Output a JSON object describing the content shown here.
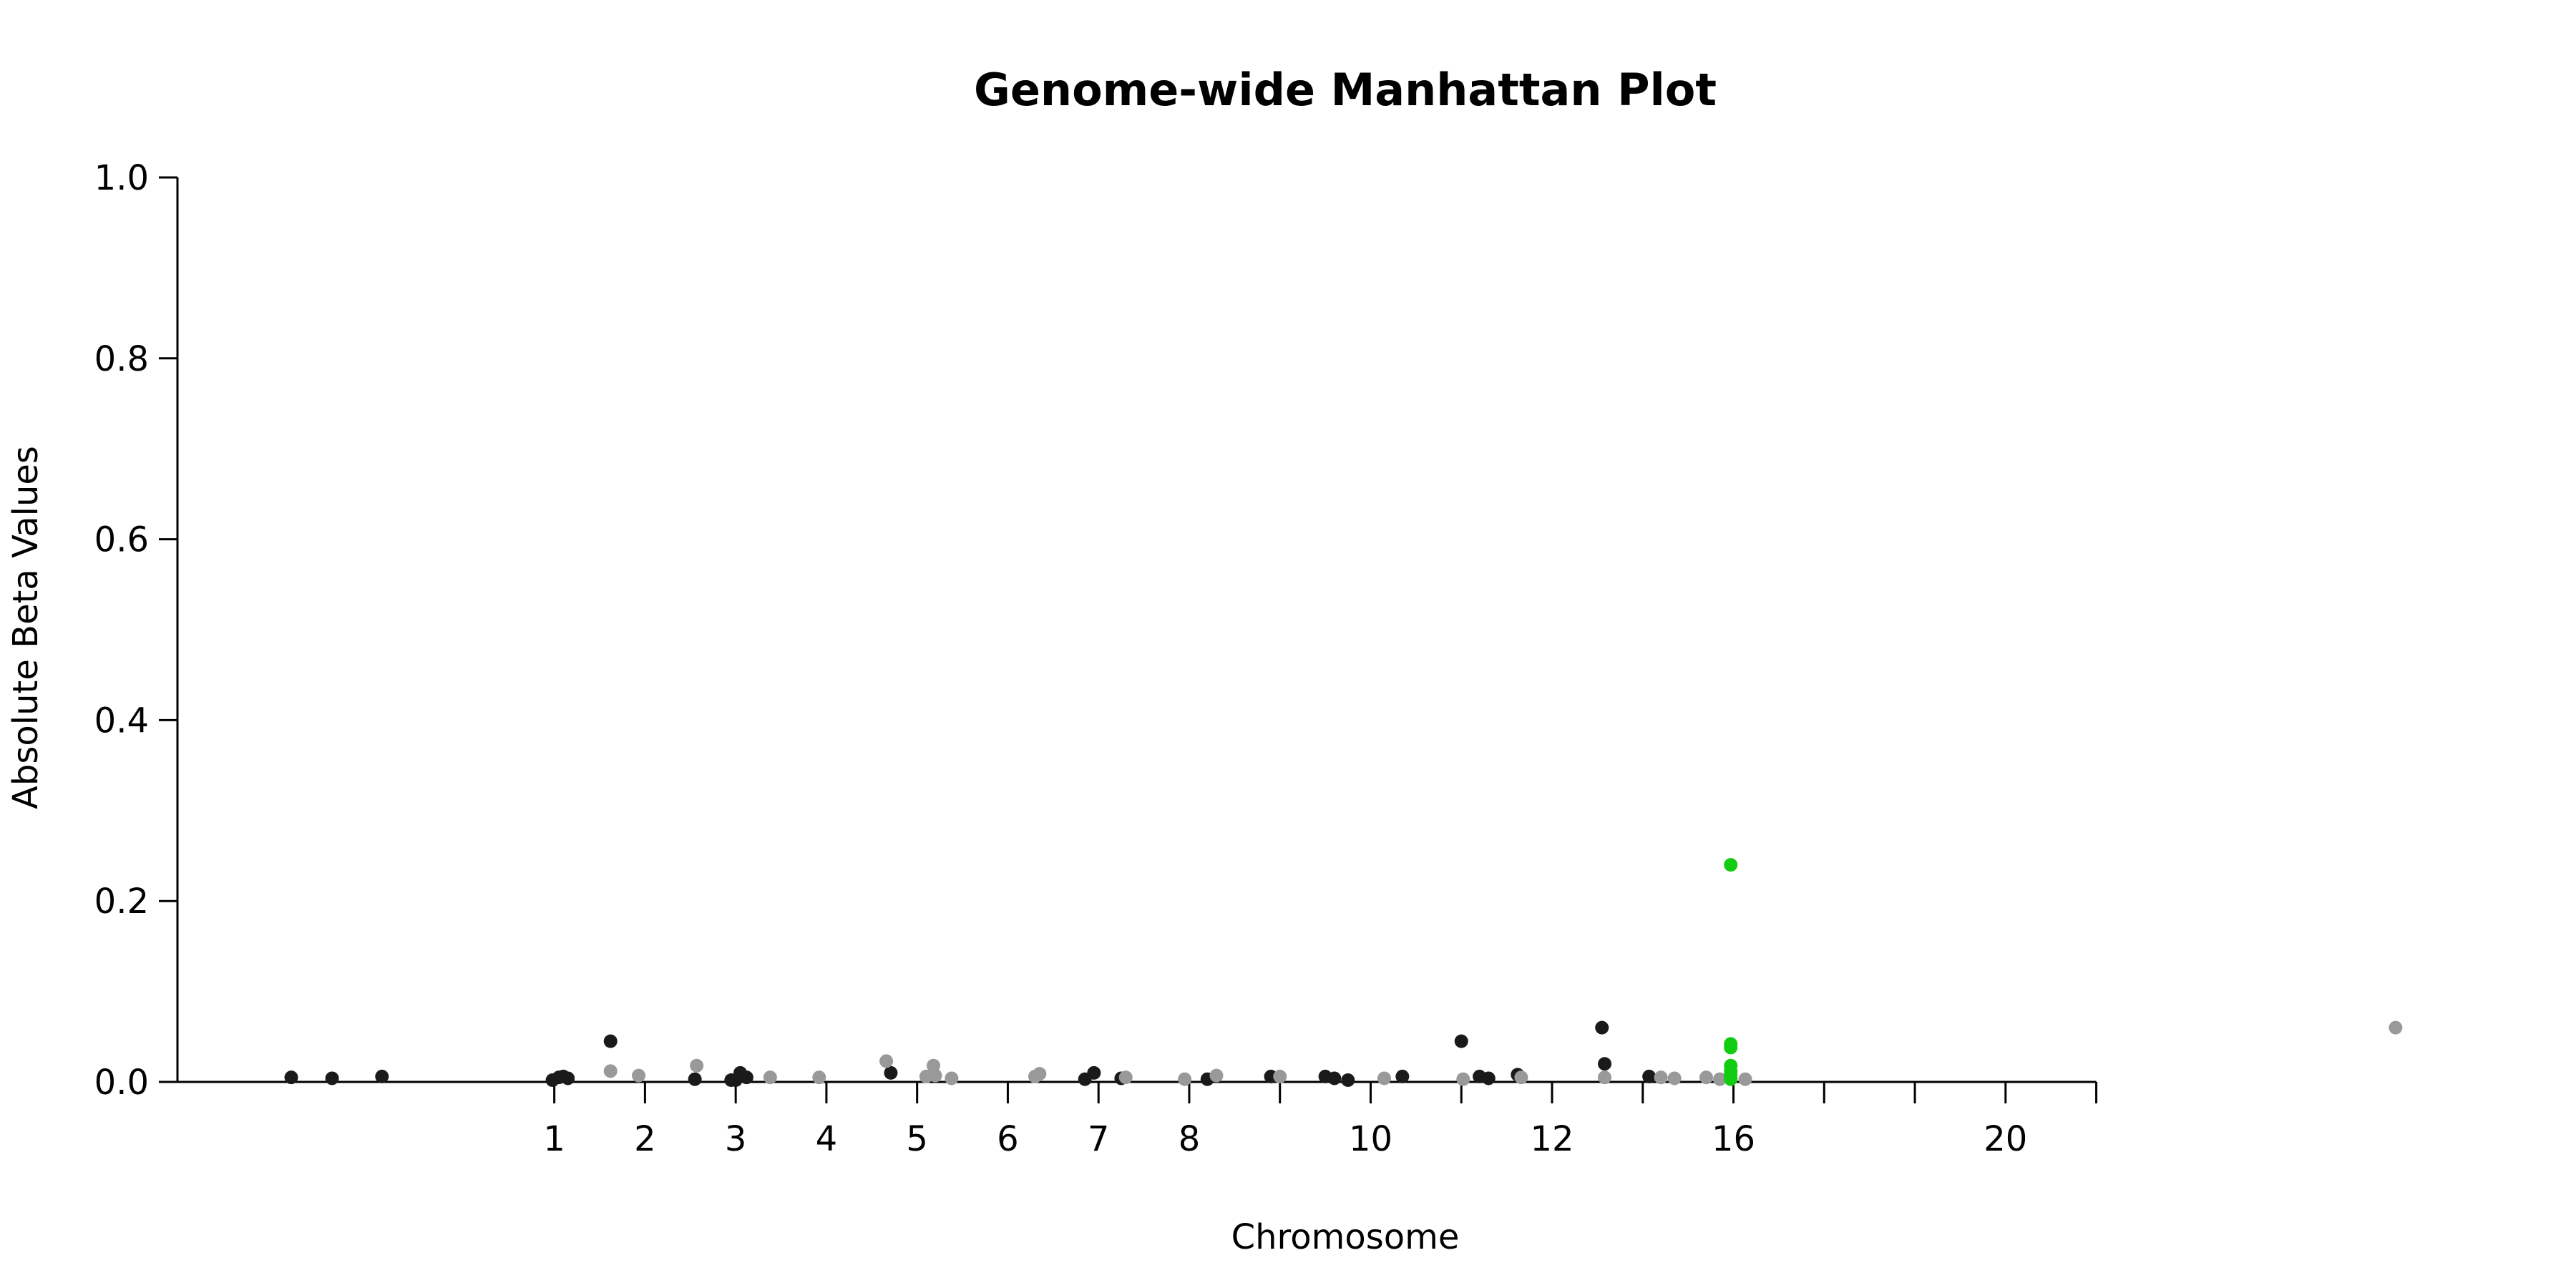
{
  "chart_data": {
    "type": "scatter",
    "title": "Genome-wide Manhattan Plot",
    "xlabel": "Chromosome",
    "ylabel": "Absolute Beta Values",
    "ylim": [
      0,
      1.0
    ],
    "yticks": [
      "0.0",
      "0.2",
      "0.4",
      "0.6",
      "0.8",
      "1.0"
    ],
    "xlim": [
      -0.2,
      24.5
    ],
    "xticks": [
      {
        "x": 3,
        "label": "1"
      },
      {
        "x": 4,
        "label": "2"
      },
      {
        "x": 5,
        "label": "3"
      },
      {
        "x": 6,
        "label": "4"
      },
      {
        "x": 7,
        "label": "5"
      },
      {
        "x": 8,
        "label": "6"
      },
      {
        "x": 9,
        "label": "7"
      },
      {
        "x": 10,
        "label": "8"
      },
      {
        "x": 11,
        "label": ""
      },
      {
        "x": 12,
        "label": "10"
      },
      {
        "x": 13,
        "label": ""
      },
      {
        "x": 14,
        "label": "12"
      },
      {
        "x": 15,
        "label": ""
      },
      {
        "x": 16,
        "label": "16"
      },
      {
        "x": 17,
        "label": ""
      },
      {
        "x": 18,
        "label": ""
      },
      {
        "x": 19,
        "label": "20"
      },
      {
        "x": 20,
        "label": ""
      }
    ],
    "colors": {
      "dark": "#1a1a1a",
      "light": "#999999",
      "highlight": "#11cc11"
    },
    "series": [
      {
        "color": "dark",
        "points": [
          [
            0.1,
            0.005
          ],
          [
            0.55,
            0.004
          ],
          [
            1.1,
            0.006
          ],
          [
            2.98,
            0.002
          ],
          [
            3.05,
            0.005
          ],
          [
            3.1,
            0.006
          ],
          [
            3.15,
            0.004
          ],
          [
            3.62,
            0.045
          ],
          [
            4.55,
            0.003
          ],
          [
            4.95,
            0.002
          ],
          [
            5.0,
            0.002
          ],
          [
            5.05,
            0.01
          ],
          [
            5.12,
            0.005
          ],
          [
            6.71,
            0.01
          ],
          [
            8.85,
            0.003
          ],
          [
            8.95,
            0.01
          ],
          [
            9.25,
            0.004
          ],
          [
            10.2,
            0.003
          ],
          [
            10.9,
            0.006
          ],
          [
            11.5,
            0.006
          ],
          [
            11.6,
            0.004
          ],
          [
            11.75,
            0.002
          ],
          [
            12.35,
            0.006
          ],
          [
            13.0,
            0.045
          ],
          [
            13.2,
            0.006
          ],
          [
            13.3,
            0.004
          ],
          [
            13.62,
            0.008
          ],
          [
            14.55,
            0.06
          ],
          [
            14.58,
            0.02
          ],
          [
            15.07,
            0.006
          ]
        ]
      },
      {
        "color": "light",
        "points": [
          [
            3.62,
            0.012
          ],
          [
            3.93,
            0.007
          ],
          [
            4.57,
            0.018
          ],
          [
            5.38,
            0.005
          ],
          [
            5.92,
            0.005
          ],
          [
            6.66,
            0.023
          ],
          [
            7.1,
            0.006
          ],
          [
            7.18,
            0.018
          ],
          [
            7.2,
            0.007
          ],
          [
            7.38,
            0.004
          ],
          [
            8.3,
            0.006
          ],
          [
            8.35,
            0.009
          ],
          [
            9.3,
            0.005
          ],
          [
            9.95,
            0.003
          ],
          [
            10.3,
            0.007
          ],
          [
            11.0,
            0.006
          ],
          [
            12.15,
            0.004
          ],
          [
            13.02,
            0.003
          ],
          [
            13.66,
            0.005
          ],
          [
            14.58,
            0.005
          ],
          [
            15.2,
            0.005
          ],
          [
            15.35,
            0.004
          ],
          [
            15.7,
            0.005
          ],
          [
            15.85,
            0.003
          ],
          [
            16.13,
            0.003
          ],
          [
            23.3,
            0.06
          ]
        ]
      },
      {
        "color": "highlight",
        "points": [
          [
            15.97,
            0.24
          ],
          [
            15.97,
            0.042
          ],
          [
            15.97,
            0.038
          ],
          [
            15.97,
            0.018
          ],
          [
            15.97,
            0.012
          ],
          [
            15.97,
            0.008
          ],
          [
            15.97,
            0.005
          ],
          [
            15.97,
            0.003
          ]
        ]
      }
    ]
  }
}
